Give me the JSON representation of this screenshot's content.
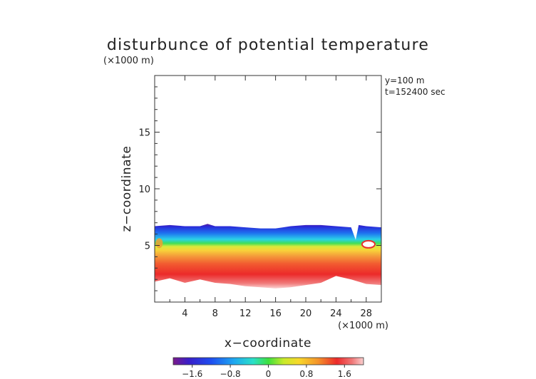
{
  "chart_data": {
    "type": "heatmap",
    "title": "disturbunce of potential temperature",
    "y_unit_label": "(×1000 m)",
    "x_unit_label": "(×1000 m)",
    "xlabel": "x−coordinate",
    "ylabel": "z−coordinate",
    "annotations": [
      "y=100 m",
      "t=152400 sec"
    ],
    "xlim": [
      0,
      30
    ],
    "ylim": [
      0,
      20
    ],
    "x_ticks": [
      4,
      8,
      12,
      16,
      20,
      24,
      28
    ],
    "x_tick_labels": [
      "4",
      "8",
      "12",
      "16",
      "20",
      "24",
      "28"
    ],
    "y_ticks": [
      5,
      10,
      15
    ],
    "y_tick_labels": [
      "5",
      "10",
      "15"
    ],
    "colorbar": {
      "range": [
        -2.0,
        2.0
      ],
      "ticks": [
        -1.6,
        -0.8,
        0,
        0.8,
        1.6
      ],
      "tick_labels": [
        "−1.6",
        "−0.8",
        "0",
        "0.8",
        "1.6"
      ],
      "colormap": "rainbow (purple → blue → cyan → green → yellow → orange → red → pink)"
    },
    "layer_top_z": [
      [
        0,
        6.7
      ],
      [
        2,
        6.8
      ],
      [
        4,
        6.7
      ],
      [
        6,
        6.7
      ],
      [
        7,
        6.9
      ],
      [
        8,
        6.7
      ],
      [
        10,
        6.7
      ],
      [
        12,
        6.6
      ],
      [
        14,
        6.5
      ],
      [
        16,
        6.5
      ],
      [
        17,
        6.6
      ],
      [
        18,
        6.7
      ],
      [
        20,
        6.8
      ],
      [
        22,
        6.8
      ],
      [
        24,
        6.7
      ],
      [
        26,
        6.6
      ],
      [
        26.6,
        5.5
      ],
      [
        27,
        6.8
      ],
      [
        28,
        6.7
      ],
      [
        30,
        6.6
      ]
    ],
    "layer_bottom_z": [
      [
        0,
        1.8
      ],
      [
        2,
        2.1
      ],
      [
        4,
        1.7
      ],
      [
        6,
        2.0
      ],
      [
        8,
        1.7
      ],
      [
        10,
        1.6
      ],
      [
        12,
        1.4
      ],
      [
        14,
        1.3
      ],
      [
        16,
        1.2
      ],
      [
        18,
        1.3
      ],
      [
        20,
        1.5
      ],
      [
        22,
        1.7
      ],
      [
        24,
        2.3
      ],
      [
        26,
        2.0
      ],
      [
        28,
        1.6
      ],
      [
        30,
        1.5
      ]
    ],
    "field_bands": [
      {
        "z_fraction": 0.0,
        "value": 1.9
      },
      {
        "z_fraction": 0.3,
        "value": 1.7
      },
      {
        "z_fraction": 0.5,
        "value": 1.3
      },
      {
        "z_fraction": 0.6,
        "value": 0.6
      },
      {
        "z_fraction": 0.65,
        "value": 0.0
      },
      {
        "z_fraction": 0.72,
        "value": -0.6
      },
      {
        "z_fraction": 0.82,
        "value": -1.3
      },
      {
        "z_fraction": 0.93,
        "value": -1.8
      },
      {
        "z_fraction": 1.0,
        "value": -2.0
      }
    ]
  }
}
